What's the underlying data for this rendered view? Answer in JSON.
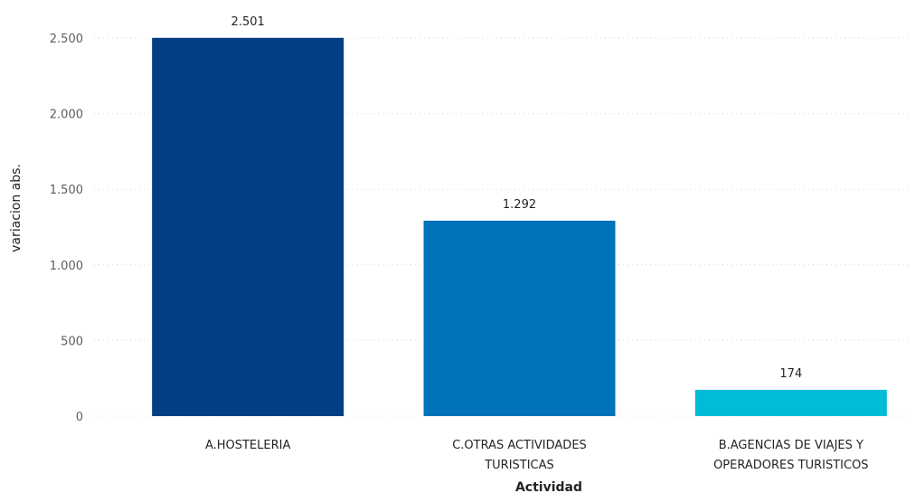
{
  "chart_data": {
    "type": "bar",
    "categories": [
      "A.HOSTELERIA",
      "C.OTRAS ACTIVIDADES TURISTICAS",
      "B.AGENCIAS DE VIAJES Y OPERADORES TURISTICOS"
    ],
    "category_lines": [
      [
        "A.HOSTELERIA"
      ],
      [
        "C.OTRAS ACTIVIDADES",
        "TURISTICAS"
      ],
      [
        "B.AGENCIAS DE VIAJES Y",
        "OPERADORES TURISTICOS"
      ]
    ],
    "values": [
      2501,
      1292,
      174
    ],
    "data_labels": [
      "2.501",
      "1.292",
      "174"
    ],
    "bar_colors": [
      "#003f84",
      "#0071bb",
      "#00bcd7"
    ],
    "title": "",
    "xlabel": "Actividad",
    "ylabel": "variacion abs.",
    "ylim": [
      0,
      2500
    ],
    "yticks": [
      0,
      500,
      1000,
      1500,
      2000,
      2500
    ],
    "ytick_labels": [
      "0",
      "500",
      "1.000",
      "1.500",
      "2.000",
      "2.500"
    ],
    "grid": true,
    "legend": "none"
  }
}
